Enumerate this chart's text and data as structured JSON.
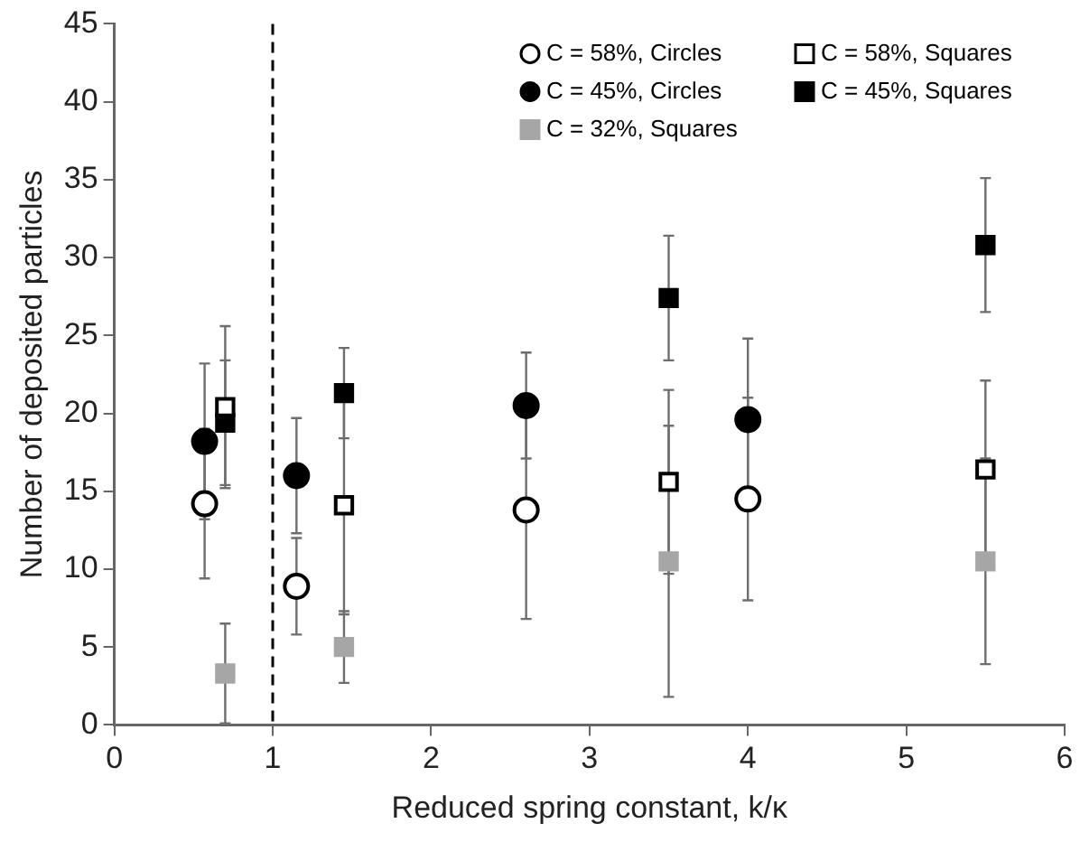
{
  "chart_data": {
    "type": "scatter",
    "xlabel": "Reduced spring constant, k/κ",
    "ylabel": "Number of deposited particles",
    "xlim": [
      0,
      6
    ],
    "xticks": [
      0,
      1,
      2,
      3,
      4,
      5,
      6
    ],
    "ylim": [
      0,
      45
    ],
    "yticks": [
      0,
      5,
      10,
      15,
      20,
      25,
      30,
      35,
      40,
      45
    ],
    "grid": false,
    "legend": "top right",
    "ref_lines": [
      {
        "axis": "x",
        "value": 1,
        "color": "#000000",
        "line_style": "dashed"
      }
    ],
    "series": [
      {
        "name": "C = 58%, Circles",
        "color": "#ffffff",
        "marker": "circle",
        "x": [
          0.57,
          1.15,
          2.6,
          4.0
        ],
        "values": [
          14.2,
          8.9,
          13.8,
          14.5
        ],
        "errors": [
          4.8,
          3.1,
          7,
          6.5
        ]
      },
      {
        "name": "C = 58%, Squares",
        "color": "#ffffff",
        "marker": "square",
        "x": [
          0.7,
          1.45,
          3.5,
          5.5
        ],
        "values": [
          20.4,
          14.1,
          15.6,
          16.4
        ],
        "errors": [
          5.2,
          7,
          5.9,
          5.7
        ]
      },
      {
        "name": "C = 45%, Circles",
        "color": "#000000",
        "marker": "circle",
        "x": [
          0.57,
          1.15,
          2.6,
          4.0
        ],
        "values": [
          18.2,
          16,
          20.5,
          19.6
        ],
        "errors": [
          5,
          3.7,
          3.4,
          5.2
        ]
      },
      {
        "name": "C = 45%, Squares",
        "color": "#000000",
        "marker": "square",
        "x": [
          0.7,
          1.45,
          3.5,
          5.5
        ],
        "values": [
          19.4,
          21.3,
          27.4,
          30.8
        ],
        "errors": [
          4,
          2.9,
          4,
          4.3
        ]
      },
      {
        "name": "C = 32%, Squares",
        "color": "#a6a6a6",
        "marker": "square",
        "x": [
          0.7,
          1.45,
          3.5,
          5.5
        ],
        "values": [
          3.3,
          5,
          10.5,
          10.5
        ],
        "errors": [
          3.2,
          2.3,
          8.7,
          6.6
        ]
      }
    ]
  }
}
